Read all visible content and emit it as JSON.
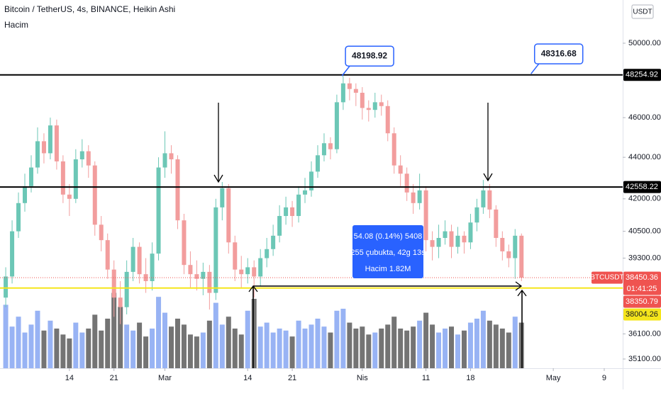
{
  "chart_data": {
    "type": "candlestick",
    "title": "Bitcoin / TetherUS, 4s, BINANCE, Heikin Ashi",
    "subtitle": "Hacim",
    "currency": "USDT",
    "symbol": "BTCUSDT",
    "log_scale": true,
    "grid": false,
    "up_color": "#6cc7b6",
    "down_color": "#f29d9d",
    "volume_up_color": "#86a6f2",
    "volume_down_color": "#5c5c5c",
    "x": [
      4,
      5,
      6,
      7,
      8,
      9,
      10,
      11,
      12,
      13,
      14,
      15,
      16,
      17,
      18,
      19,
      20,
      21,
      22,
      23,
      24,
      25,
      26,
      27,
      28,
      29,
      30,
      31,
      32,
      33,
      34,
      35,
      36,
      37,
      38,
      39,
      40,
      41,
      42,
      43,
      44,
      45,
      46,
      47,
      48,
      49,
      50,
      51,
      52,
      53,
      54,
      55,
      56,
      57,
      58,
      59,
      60,
      61,
      62,
      63,
      64,
      65,
      66,
      67,
      68,
      69,
      70,
      71,
      72,
      73,
      74,
      75,
      76,
      77,
      78,
      79,
      80,
      81,
      82,
      83,
      84,
      85
    ],
    "open": [
      37600,
      38500,
      40500,
      41800,
      42600,
      43500,
      44800,
      44200,
      45600,
      43800,
      42200,
      42000,
      43900,
      44300,
      43600,
      40800,
      40100,
      38800,
      37600,
      37200,
      38700,
      39800,
      38600,
      38300,
      39500,
      43500,
      44200,
      43900,
      41000,
      39000,
      38600,
      38400,
      38700,
      37800,
      41600,
      42500,
      40000,
      38800,
      38600,
      38900,
      38500,
      39300,
      39700,
      40300,
      41200,
      41600,
      41200,
      42200,
      42400,
      43300,
      44100,
      44700,
      44400,
      46800,
      47800,
      47500,
      47300,
      46500,
      46400,
      46800,
      46600,
      45200,
      43600,
      43200,
      42300,
      41800,
      42400,
      40100,
      39800,
      40200,
      40500,
      39800,
      40300,
      40000,
      40900,
      41600,
      42400,
      41500,
      40200,
      39600,
      39300,
      40300
    ],
    "high": [
      38900,
      41000,
      42300,
      43200,
      44100,
      45500,
      45200,
      46000,
      45900,
      44100,
      42700,
      44400,
      44900,
      44600,
      43800,
      41200,
      40400,
      39200,
      38300,
      39200,
      40200,
      40000,
      39300,
      40000,
      44000,
      45300,
      44600,
      44100,
      41300,
      39600,
      39200,
      39100,
      39000,
      42000,
      42800,
      42700,
      40300,
      39400,
      39300,
      39200,
      39700,
      40200,
      40800,
      41700,
      42100,
      41900,
      42600,
      43000,
      43800,
      44600,
      45200,
      45000,
      47200,
      48200,
      48100,
      47800,
      47600,
      46900,
      47300,
      47200,
      46900,
      45500,
      44100,
      43500,
      42700,
      43200,
      42600,
      40500,
      40800,
      41000,
      40800,
      40700,
      40500,
      41300,
      42000,
      42900,
      42700,
      41700,
      40500,
      39900,
      40600,
      40400
    ],
    "low": [
      37200,
      38200,
      40200,
      41400,
      42300,
      43200,
      43700,
      43900,
      43400,
      41800,
      41200,
      41800,
      43500,
      43000,
      40300,
      39600,
      38400,
      36800,
      36500,
      36900,
      38300,
      38200,
      37800,
      37900,
      39200,
      43000,
      43200,
      40600,
      38600,
      38000,
      37900,
      37700,
      37100,
      37500,
      41000,
      39500,
      38300,
      38000,
      38200,
      37600,
      38100,
      38900,
      39400,
      40000,
      40800,
      40700,
      40900,
      41800,
      42100,
      43000,
      43800,
      43900,
      44200,
      46400,
      46900,
      46600,
      45900,
      45800,
      46000,
      46100,
      44800,
      43200,
      42600,
      41900,
      41300,
      41500,
      39600,
      39200,
      39300,
      39900,
      39300,
      39500,
      39500,
      39700,
      40500,
      41300,
      41100,
      39800,
      39200,
      38900,
      38400,
      38300
    ],
    "close": [
      38500,
      40500,
      41800,
      42600,
      43500,
      44800,
      44200,
      45600,
      43800,
      42200,
      42000,
      43900,
      44300,
      43600,
      40800,
      40100,
      38800,
      37600,
      37200,
      38700,
      39800,
      38600,
      38300,
      39500,
      43500,
      44200,
      43900,
      41000,
      39000,
      38600,
      38400,
      38700,
      37800,
      41600,
      42500,
      40000,
      38800,
      38600,
      38900,
      38500,
      39300,
      39700,
      40300,
      41200,
      41600,
      41200,
      42200,
      42400,
      43300,
      44100,
      44700,
      44400,
      46800,
      47800,
      47500,
      47300,
      46500,
      46400,
      46800,
      46600,
      45200,
      43600,
      43200,
      42300,
      41800,
      42400,
      40100,
      39800,
      40200,
      40500,
      39800,
      40300,
      40000,
      40900,
      41600,
      42400,
      41500,
      40200,
      39600,
      39300,
      40300,
      38450.36
    ],
    "volume": [
      3.2,
      2.1,
      2.6,
      1.8,
      2.2,
      2.9,
      1.9,
      2.4,
      2.0,
      1.7,
      1.5,
      2.3,
      1.8,
      2.0,
      2.7,
      1.9,
      2.5,
      3.8,
      3.1,
      2.2,
      1.9,
      2.3,
      1.6,
      2.0,
      3.6,
      2.8,
      2.1,
      2.5,
      2.2,
      1.7,
      1.6,
      1.8,
      2.4,
      3.3,
      2.2,
      2.6,
      2.0,
      1.7,
      2.9,
      3.5,
      2.1,
      2.3,
      1.8,
      2.0,
      1.9,
      1.6,
      2.4,
      2.0,
      2.2,
      2.5,
      2.1,
      1.8,
      2.9,
      3.0,
      2.3,
      2.0,
      2.1,
      1.7,
      1.8,
      2.0,
      2.2,
      2.6,
      2.0,
      1.9,
      2.1,
      2.4,
      2.8,
      2.2,
      1.8,
      2.0,
      2.1,
      1.7,
      1.9,
      2.3,
      2.5,
      2.9,
      2.4,
      2.2,
      2.0,
      1.8,
      2.6,
      2.3
    ],
    "volume_ylim": [
      0,
      5
    ],
    "xlim": [
      3.1,
      100.9
    ],
    "xticks": [
      {
        "value": 14,
        "label": "14"
      },
      {
        "value": 21,
        "label": "21"
      },
      {
        "value": 29,
        "label": "Mar"
      },
      {
        "value": 42,
        "label": "14"
      },
      {
        "value": 49,
        "label": "21"
      },
      {
        "value": 60,
        "label": "Nis"
      },
      {
        "value": 70,
        "label": "11"
      },
      {
        "value": 77,
        "label": "18"
      },
      {
        "value": 90,
        "label": "May"
      },
      {
        "value": 98,
        "label": "9"
      }
    ],
    "ylim": [
      34740,
      52480
    ],
    "yticks": [
      {
        "value": 50000,
        "label": "50000.00"
      },
      {
        "value": 46000,
        "label": "46000.00"
      },
      {
        "value": 44000,
        "label": "44000.00"
      },
      {
        "value": 42000,
        "label": "42000.00"
      },
      {
        "value": 40500,
        "label": "40500.00"
      },
      {
        "value": 39300,
        "label": "39300.00"
      },
      {
        "value": 36100,
        "label": "36100.00"
      },
      {
        "value": 35100,
        "label": "35100.00"
      }
    ],
    "horizontal_lines": [
      {
        "value": 48254.92,
        "color": "#000000",
        "text_color": "#ffffff"
      },
      {
        "value": 42558.22,
        "color": "#000000",
        "text_color": "#ffffff"
      },
      {
        "value": 38004.26,
        "color": "#f5e51b",
        "text_color": "#131722"
      }
    ],
    "last_price": 38450.36,
    "last_price_color": "#ef5350",
    "countdown": "01:41:25",
    "price_labels": [
      {
        "value": 38350.79,
        "color": "#ef5350"
      }
    ],
    "callouts": [
      {
        "value": 48198.92,
        "x": 56.8
      },
      {
        "value": 48316.68,
        "x": 86.5
      }
    ],
    "measure": {
      "lines": [
        "54.08 (0.14%) 5408",
        "255 çubukta, 42g 13s",
        "Hacim 1.82M"
      ]
    }
  }
}
